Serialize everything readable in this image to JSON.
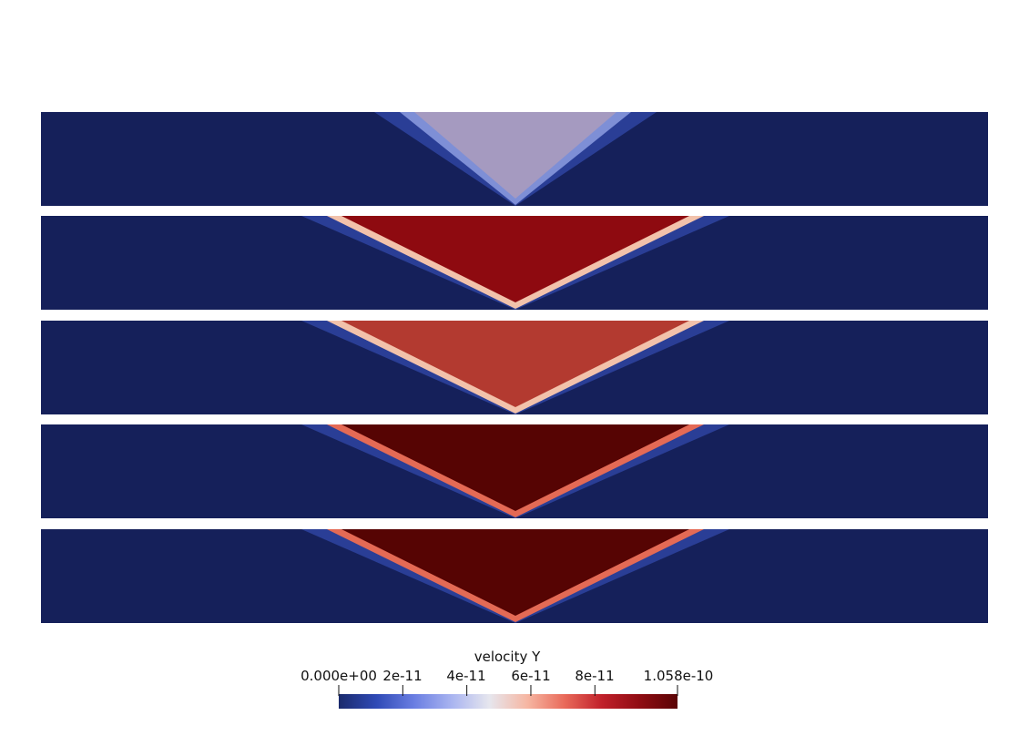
{
  "colorbar": {
    "title": "velocity Y",
    "tick_labels": [
      "0.000e+00",
      "2e-11",
      "4e-11",
      "6e-11",
      "8e-11",
      "1.058e-10"
    ],
    "tick_values": [
      0,
      2e-11,
      4e-11,
      6e-11,
      8e-11,
      1.058e-10
    ],
    "range": [
      0,
      1.058e-10
    ],
    "colors": [
      "#1a2a6c",
      "#2f4ab6",
      "#6a7ee2",
      "#a9b4f0",
      "#e6e6ee",
      "#f6b7a3",
      "#e96a5a",
      "#c0202a",
      "#8f0c12",
      "#5a0405"
    ]
  },
  "panels": [
    {
      "fill": "#a59ac0",
      "edge": "#7e8fd6",
      "level": 0.45
    },
    {
      "fill": "#8e0a10",
      "edge": "#f2c2ab",
      "level": 0.92
    },
    {
      "fill": "#b33a30",
      "edge": "#f2c2ab",
      "level": 0.8
    },
    {
      "fill": "#560403",
      "edge": "#e46a55",
      "level": 1.0
    },
    {
      "fill": "#560403",
      "edge": "#e46a55",
      "level": 1.0
    }
  ],
  "background_color": "#15205a"
}
